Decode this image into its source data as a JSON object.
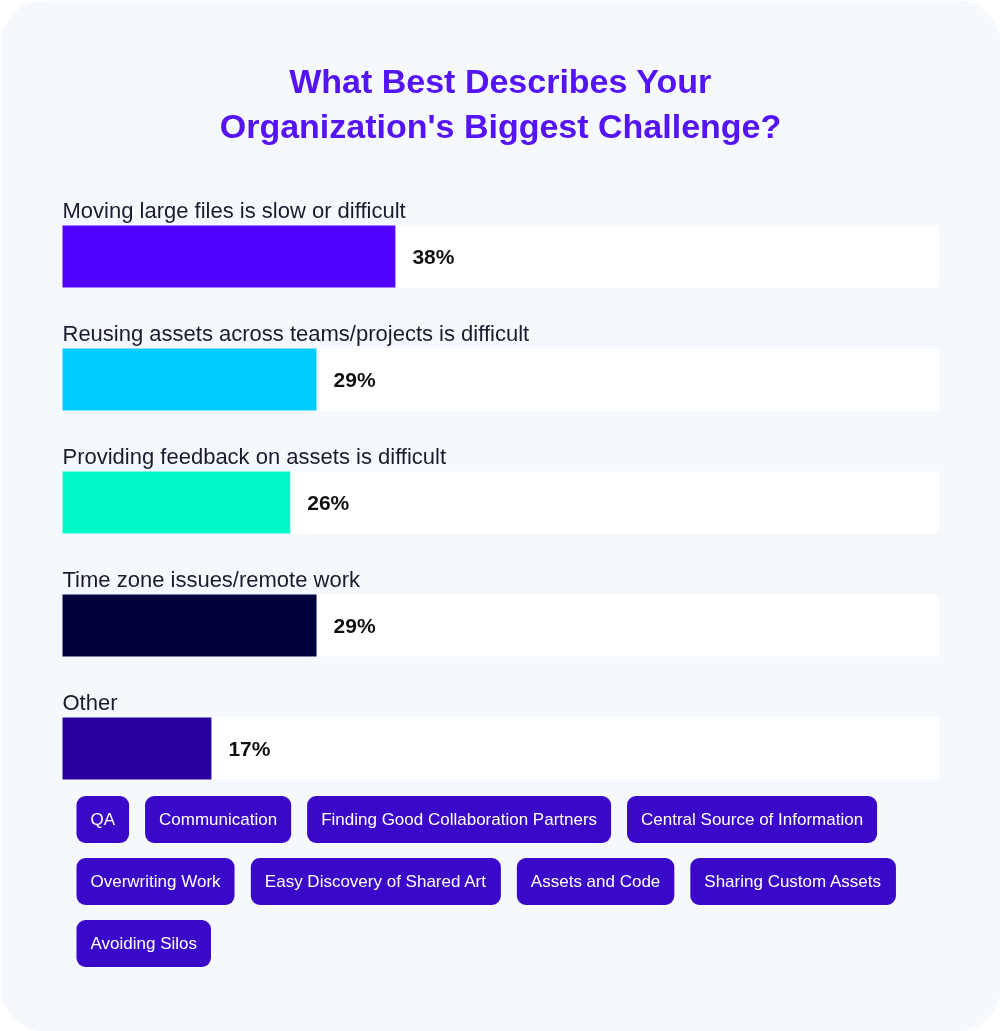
{
  "chart_data": {
    "type": "bar",
    "orientation": "horizontal",
    "title": "What Best Describes Your Organization's Biggest Challenge?",
    "categories": [
      "Moving large files is slow or difficult",
      "Reusing assets across teams/projects is difficult",
      "Providing feedback on assets is difficult",
      "Time zone issues/remote work",
      "Other"
    ],
    "values": [
      38,
      29,
      26,
      29,
      17
    ],
    "colors": [
      "#5000ff",
      "#00ccff",
      "#00f9c8",
      "#00003c",
      "#28009e"
    ],
    "value_labels": [
      "38%",
      "29%",
      "26%",
      "29%",
      "17%"
    ],
    "xlim": [
      0,
      100
    ],
    "annotations": [
      "QA",
      "Communication",
      "Finding Good Collaboration Partners",
      "Central Source of Information",
      "Overwriting Work",
      "Easy Discovery of Shared Art",
      "Assets and Code",
      "Sharing Custom Assets",
      "Avoiding Silos"
    ]
  }
}
